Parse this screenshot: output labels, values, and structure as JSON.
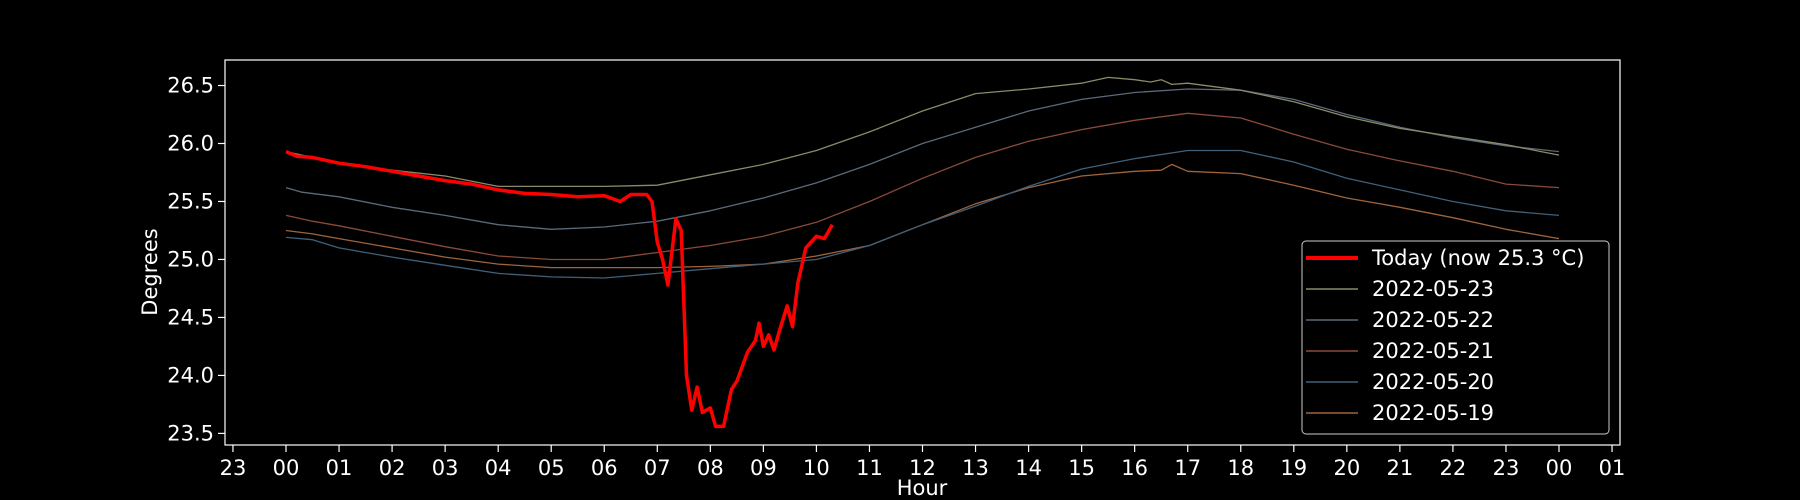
{
  "chart_data": {
    "type": "line",
    "xlabel": "Hour",
    "ylabel": "Degrees",
    "x_range_hours": [
      -1.15,
      25.15
    ],
    "ylim": [
      23.4,
      26.72
    ],
    "x_ticks": [
      {
        "h": -1,
        "label": "23"
      },
      {
        "h": 0,
        "label": "00"
      },
      {
        "h": 1,
        "label": "01"
      },
      {
        "h": 2,
        "label": "02"
      },
      {
        "h": 3,
        "label": "03"
      },
      {
        "h": 4,
        "label": "04"
      },
      {
        "h": 5,
        "label": "05"
      },
      {
        "h": 6,
        "label": "06"
      },
      {
        "h": 7,
        "label": "07"
      },
      {
        "h": 8,
        "label": "08"
      },
      {
        "h": 9,
        "label": "09"
      },
      {
        "h": 10,
        "label": "10"
      },
      {
        "h": 11,
        "label": "11"
      },
      {
        "h": 12,
        "label": "12"
      },
      {
        "h": 13,
        "label": "13"
      },
      {
        "h": 14,
        "label": "14"
      },
      {
        "h": 15,
        "label": "15"
      },
      {
        "h": 16,
        "label": "16"
      },
      {
        "h": 17,
        "label": "17"
      },
      {
        "h": 18,
        "label": "18"
      },
      {
        "h": 19,
        "label": "19"
      },
      {
        "h": 20,
        "label": "20"
      },
      {
        "h": 21,
        "label": "21"
      },
      {
        "h": 22,
        "label": "22"
      },
      {
        "h": 23,
        "label": "23"
      },
      {
        "h": 24,
        "label": "00"
      },
      {
        "h": 25,
        "label": "01"
      }
    ],
    "y_ticks": [
      {
        "v": 23.5,
        "label": "23.5"
      },
      {
        "v": 24.0,
        "label": "24.0"
      },
      {
        "v": 24.5,
        "label": "24.5"
      },
      {
        "v": 25.0,
        "label": "25.0"
      },
      {
        "v": 25.5,
        "label": "25.5"
      },
      {
        "v": 26.0,
        "label": "26.0"
      },
      {
        "v": 26.5,
        "label": "26.5"
      }
    ],
    "grid": false,
    "legend_position": "bottom-right",
    "series": [
      {
        "name": "2022-05-19",
        "color": "#a0643c",
        "points": [
          [
            0,
            25.25
          ],
          [
            0.5,
            25.22
          ],
          [
            1,
            25.18
          ],
          [
            2,
            25.1
          ],
          [
            3,
            25.02
          ],
          [
            4,
            24.96
          ],
          [
            5,
            24.93
          ],
          [
            6,
            24.93
          ],
          [
            7,
            24.93
          ],
          [
            8,
            24.94
          ],
          [
            9,
            24.96
          ],
          [
            10,
            25.03
          ],
          [
            11,
            25.12
          ],
          [
            12,
            25.3
          ],
          [
            13,
            25.48
          ],
          [
            14,
            25.62
          ],
          [
            15,
            25.72
          ],
          [
            16,
            25.76
          ],
          [
            16.5,
            25.77
          ],
          [
            16.7,
            25.82
          ],
          [
            17,
            25.76
          ],
          [
            18,
            25.74
          ],
          [
            19,
            25.64
          ],
          [
            20,
            25.53
          ],
          [
            21,
            25.45
          ],
          [
            22,
            25.36
          ],
          [
            23,
            25.26
          ],
          [
            24,
            25.18
          ]
        ]
      },
      {
        "name": "2022-05-20",
        "color": "#40607a",
        "points": [
          [
            0,
            25.19
          ],
          [
            0.5,
            25.17
          ],
          [
            1,
            25.1
          ],
          [
            2,
            25.02
          ],
          [
            3,
            24.95
          ],
          [
            4,
            24.88
          ],
          [
            5,
            24.85
          ],
          [
            6,
            24.84
          ],
          [
            7,
            24.88
          ],
          [
            8,
            24.92
          ],
          [
            9,
            24.96
          ],
          [
            10,
            25.0
          ],
          [
            11,
            25.12
          ],
          [
            12,
            25.3
          ],
          [
            13,
            25.46
          ],
          [
            14,
            25.63
          ],
          [
            15,
            25.78
          ],
          [
            16,
            25.87
          ],
          [
            17,
            25.94
          ],
          [
            18,
            25.94
          ],
          [
            19,
            25.84
          ],
          [
            20,
            25.7
          ],
          [
            21,
            25.6
          ],
          [
            22,
            25.5
          ],
          [
            23,
            25.42
          ],
          [
            24,
            25.38
          ]
        ]
      },
      {
        "name": "2022-05-21",
        "color": "#8a4a3a",
        "points": [
          [
            0,
            25.38
          ],
          [
            0.5,
            25.33
          ],
          [
            1,
            25.29
          ],
          [
            2,
            25.2
          ],
          [
            3,
            25.11
          ],
          [
            4,
            25.03
          ],
          [
            5,
            25.0
          ],
          [
            6,
            25.0
          ],
          [
            7,
            25.06
          ],
          [
            8,
            25.12
          ],
          [
            9,
            25.2
          ],
          [
            10,
            25.32
          ],
          [
            11,
            25.5
          ],
          [
            12,
            25.7
          ],
          [
            13,
            25.88
          ],
          [
            14,
            26.02
          ],
          [
            15,
            26.12
          ],
          [
            16,
            26.2
          ],
          [
            17,
            26.26
          ],
          [
            18,
            26.22
          ],
          [
            19,
            26.08
          ],
          [
            20,
            25.95
          ],
          [
            21,
            25.85
          ],
          [
            22,
            25.76
          ],
          [
            23,
            25.65
          ],
          [
            24,
            25.62
          ]
        ]
      },
      {
        "name": "2022-05-22",
        "color": "#5a6a7a",
        "points": [
          [
            0,
            25.62
          ],
          [
            0.3,
            25.58
          ],
          [
            1,
            25.54
          ],
          [
            2,
            25.45
          ],
          [
            3,
            25.38
          ],
          [
            4,
            25.3
          ],
          [
            5,
            25.26
          ],
          [
            6,
            25.28
          ],
          [
            7,
            25.33
          ],
          [
            8,
            25.42
          ],
          [
            9,
            25.53
          ],
          [
            10,
            25.66
          ],
          [
            11,
            25.82
          ],
          [
            12,
            26.0
          ],
          [
            13,
            26.14
          ],
          [
            14,
            26.28
          ],
          [
            15,
            26.38
          ],
          [
            16,
            26.44
          ],
          [
            17,
            26.47
          ],
          [
            18,
            26.46
          ],
          [
            19,
            26.38
          ],
          [
            20,
            26.25
          ],
          [
            21,
            26.14
          ],
          [
            22,
            26.05
          ],
          [
            23,
            25.98
          ],
          [
            24,
            25.93
          ]
        ]
      },
      {
        "name": "2022-05-23",
        "color": "#8a8a6a",
        "points": [
          [
            0,
            25.93
          ],
          [
            0.5,
            25.88
          ],
          [
            1,
            25.83
          ],
          [
            2,
            25.77
          ],
          [
            3,
            25.72
          ],
          [
            4,
            25.63
          ],
          [
            5,
            25.63
          ],
          [
            6,
            25.63
          ],
          [
            7,
            25.64
          ],
          [
            8,
            25.73
          ],
          [
            9,
            25.82
          ],
          [
            10,
            25.94
          ],
          [
            11,
            26.1
          ],
          [
            12,
            26.28
          ],
          [
            13,
            26.43
          ],
          [
            14,
            26.47
          ],
          [
            15,
            26.52
          ],
          [
            15.5,
            26.57
          ],
          [
            16,
            26.55
          ],
          [
            16.3,
            26.53
          ],
          [
            16.5,
            26.55
          ],
          [
            16.7,
            26.51
          ],
          [
            17,
            26.52
          ],
          [
            18,
            26.46
          ],
          [
            19,
            26.36
          ],
          [
            20,
            26.23
          ],
          [
            21,
            26.13
          ],
          [
            22,
            26.06
          ],
          [
            23,
            25.99
          ],
          [
            24,
            25.9
          ]
        ]
      },
      {
        "name": "Today (now 25.3 °C)",
        "color": "#ff0000",
        "points": [
          [
            0,
            25.93
          ],
          [
            0.2,
            25.89
          ],
          [
            0.5,
            25.88
          ],
          [
            1,
            25.83
          ],
          [
            1.5,
            25.8
          ],
          [
            2,
            25.76
          ],
          [
            2.5,
            25.72
          ],
          [
            3,
            25.68
          ],
          [
            3.5,
            25.65
          ],
          [
            4,
            25.6
          ],
          [
            4.5,
            25.57
          ],
          [
            5,
            25.56
          ],
          [
            5.5,
            25.54
          ],
          [
            6,
            25.55
          ],
          [
            6.3,
            25.5
          ],
          [
            6.5,
            25.56
          ],
          [
            6.8,
            25.56
          ],
          [
            6.9,
            25.5
          ],
          [
            7.0,
            25.15
          ],
          [
            7.1,
            25.0
          ],
          [
            7.2,
            24.78
          ],
          [
            7.35,
            25.35
          ],
          [
            7.45,
            25.25
          ],
          [
            7.55,
            24.0
          ],
          [
            7.65,
            23.7
          ],
          [
            7.75,
            23.9
          ],
          [
            7.85,
            23.68
          ],
          [
            8.0,
            23.72
          ],
          [
            8.1,
            23.56
          ],
          [
            8.25,
            23.56
          ],
          [
            8.4,
            23.88
          ],
          [
            8.5,
            23.95
          ],
          [
            8.7,
            24.2
          ],
          [
            8.85,
            24.3
          ],
          [
            8.92,
            24.45
          ],
          [
            9.0,
            24.25
          ],
          [
            9.1,
            24.35
          ],
          [
            9.2,
            24.22
          ],
          [
            9.3,
            24.38
          ],
          [
            9.45,
            24.6
          ],
          [
            9.55,
            24.42
          ],
          [
            9.65,
            24.8
          ],
          [
            9.8,
            25.1
          ],
          [
            10.0,
            25.2
          ],
          [
            10.15,
            25.18
          ],
          [
            10.3,
            25.3
          ]
        ]
      }
    ]
  }
}
